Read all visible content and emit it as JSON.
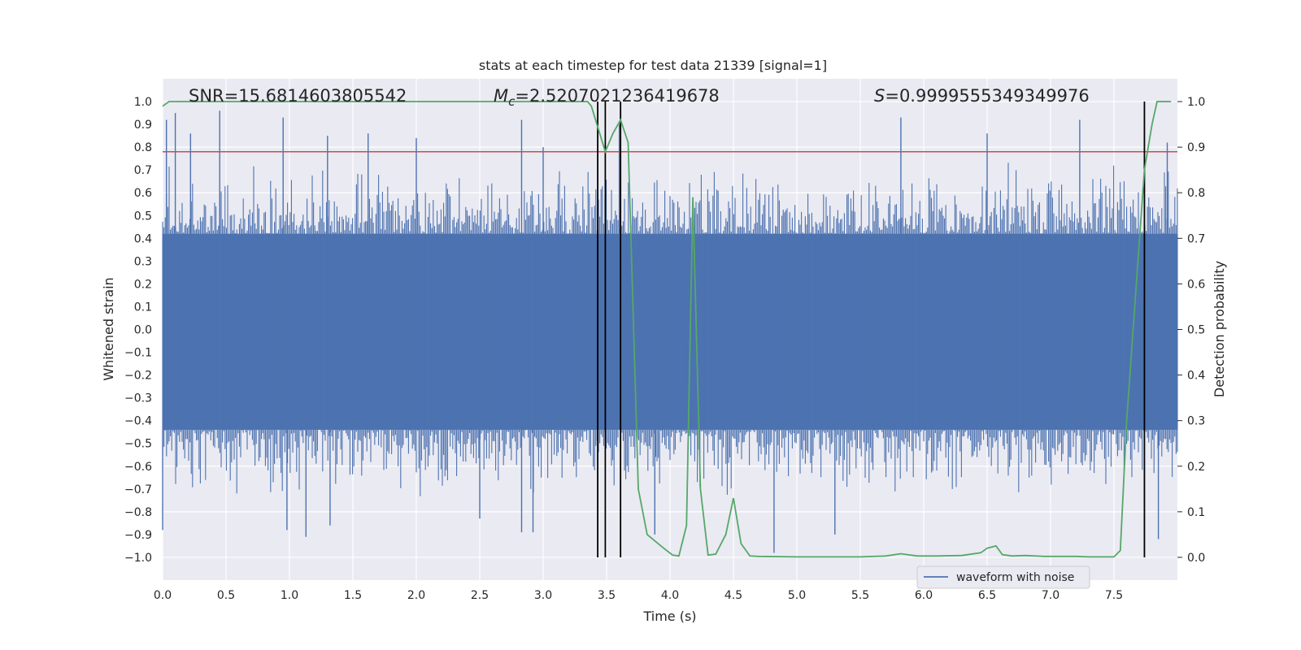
{
  "chart_data": {
    "type": "line",
    "title": "stats at each timestep for test data 21339 [signal=1]",
    "xlabel": "Time (s)",
    "ylabel_left": "Whitened strain",
    "ylabel_right": "Detection probability",
    "xlim": [
      0.0,
      8.0
    ],
    "ylim_left": [
      -1.1,
      1.1
    ],
    "ylim_right": [
      -0.05,
      1.05
    ],
    "x_ticks": [
      "0.0",
      "0.5",
      "1.0",
      "1.5",
      "2.0",
      "2.5",
      "3.0",
      "3.5",
      "4.0",
      "4.5",
      "5.0",
      "5.5",
      "6.0",
      "6.5",
      "7.0",
      "7.5"
    ],
    "y_left_ticks": [
      "1.0",
      "0.9",
      "0.8",
      "0.7",
      "0.6",
      "0.5",
      "0.4",
      "0.3",
      "0.2",
      "0.1",
      "0.0",
      "−0.1",
      "−0.2",
      "−0.3",
      "−0.4",
      "−0.5",
      "−0.6",
      "−0.7",
      "−0.8",
      "−0.9",
      "−1.0"
    ],
    "y_right_ticks": [
      "1.0",
      "0.9",
      "0.8",
      "0.7",
      "0.6",
      "0.5",
      "0.4",
      "0.3",
      "0.2",
      "0.1",
      "0.0"
    ],
    "grid": true,
    "background": "#eaeaf2",
    "annotations": {
      "snr": "SNR=15.6814603805542",
      "mc": "=2.5207021236419678",
      "mc_symbol": "M",
      "mc_sub": "c",
      "s": "=0.9999555349349976",
      "s_symbol": "S"
    },
    "threshold": {
      "value": 0.78,
      "color": "#c44e52"
    },
    "vertical_markers": [
      3.43,
      3.49,
      3.61,
      7.74
    ],
    "legend": {
      "label": "waveform with noise",
      "position": "lower-right"
    },
    "series": [
      {
        "name": "waveform with noise",
        "axis": "left",
        "color": "#4c72b0",
        "envelope": {
          "upper": 0.42,
          "lower": -0.44
        },
        "peaks": [
          {
            "x": 0.03,
            "y": 0.92
          },
          {
            "x": 0.1,
            "y": 0.95
          },
          {
            "x": 0.22,
            "y": 0.86
          },
          {
            "x": 0.45,
            "y": 0.96
          },
          {
            "x": 0.95,
            "y": 0.93
          },
          {
            "x": 1.3,
            "y": 0.85
          },
          {
            "x": 1.62,
            "y": 0.86
          },
          {
            "x": 2.0,
            "y": 0.84
          },
          {
            "x": 2.83,
            "y": 0.92
          },
          {
            "x": 3.0,
            "y": 0.8
          },
          {
            "x": 3.6,
            "y": 0.9
          },
          {
            "x": 5.82,
            "y": 0.93
          },
          {
            "x": 6.5,
            "y": 0.86
          },
          {
            "x": 7.23,
            "y": 0.92
          },
          {
            "x": 7.92,
            "y": 0.82
          },
          {
            "x": 0.0,
            "y": -0.88
          },
          {
            "x": 0.98,
            "y": -0.88
          },
          {
            "x": 1.13,
            "y": -0.91
          },
          {
            "x": 1.32,
            "y": -0.86
          },
          {
            "x": 2.5,
            "y": -0.83
          },
          {
            "x": 2.83,
            "y": -0.89
          },
          {
            "x": 2.92,
            "y": -0.89
          },
          {
            "x": 3.88,
            "y": -0.9
          },
          {
            "x": 4.82,
            "y": -0.98
          },
          {
            "x": 5.3,
            "y": -0.9
          },
          {
            "x": 7.85,
            "y": -0.92
          }
        ]
      },
      {
        "name": "detection probability",
        "axis": "right",
        "color": "#55a868",
        "x": [
          0.0,
          0.05,
          0.1,
          3.35,
          3.38,
          3.49,
          3.55,
          3.61,
          3.67,
          3.75,
          3.82,
          3.95,
          4.02,
          4.07,
          4.13,
          4.18,
          4.24,
          4.3,
          4.36,
          4.44,
          4.5,
          4.56,
          4.63,
          4.7,
          5.0,
          5.5,
          5.7,
          5.82,
          5.95,
          6.1,
          6.3,
          6.45,
          6.5,
          6.57,
          6.62,
          6.7,
          6.8,
          6.95,
          7.2,
          7.3,
          7.5,
          7.55,
          7.6,
          7.74,
          7.8,
          7.84,
          7.9,
          7.95
        ],
        "y": [
          0.99,
          1.0,
          1.0,
          1.0,
          0.99,
          0.89,
          0.93,
          0.96,
          0.91,
          0.15,
          0.05,
          0.02,
          0.005,
          0.003,
          0.07,
          0.79,
          0.15,
          0.005,
          0.007,
          0.05,
          0.13,
          0.03,
          0.003,
          0.002,
          0.001,
          0.001,
          0.003,
          0.008,
          0.003,
          0.003,
          0.004,
          0.01,
          0.02,
          0.025,
          0.006,
          0.003,
          0.004,
          0.002,
          0.002,
          0.001,
          0.001,
          0.015,
          0.3,
          0.85,
          0.95,
          1.0,
          1.0,
          1.0
        ]
      }
    ]
  }
}
